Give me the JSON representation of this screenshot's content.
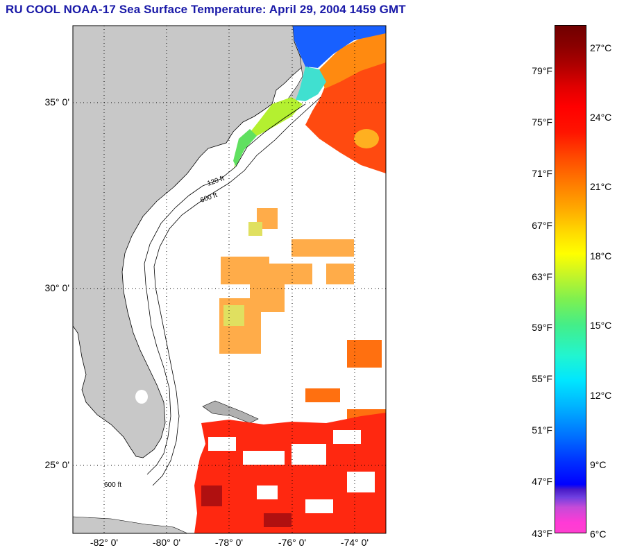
{
  "title": "RU COOL  NOAA-17  Sea Surface Temperature:  April 29, 2004 1459 GMT",
  "map": {
    "latitude_labels": [
      "35° 0'",
      "30° 0'",
      "25° 0'"
    ],
    "longitude_labels": [
      "-82° 0'",
      "-80° 0'",
      "-78° 0'",
      "-76° 0'",
      "-74° 0'"
    ],
    "isobath_labels": [
      "120 ft",
      "600 ft"
    ],
    "colors": {
      "land": "#c8c8c8",
      "ocean_no_data": "#ffffff",
      "grid": "#000000"
    }
  },
  "colorbar": {
    "fahrenheit_labels": [
      "79°F",
      "75°F",
      "71°F",
      "67°F",
      "63°F",
      "59°F",
      "55°F",
      "51°F",
      "47°F",
      "43°F"
    ],
    "celsius_labels": [
      "27°C",
      "24°C",
      "21°C",
      "18°C",
      "15°C",
      "12°C",
      "9°C",
      "6°C"
    ]
  }
}
